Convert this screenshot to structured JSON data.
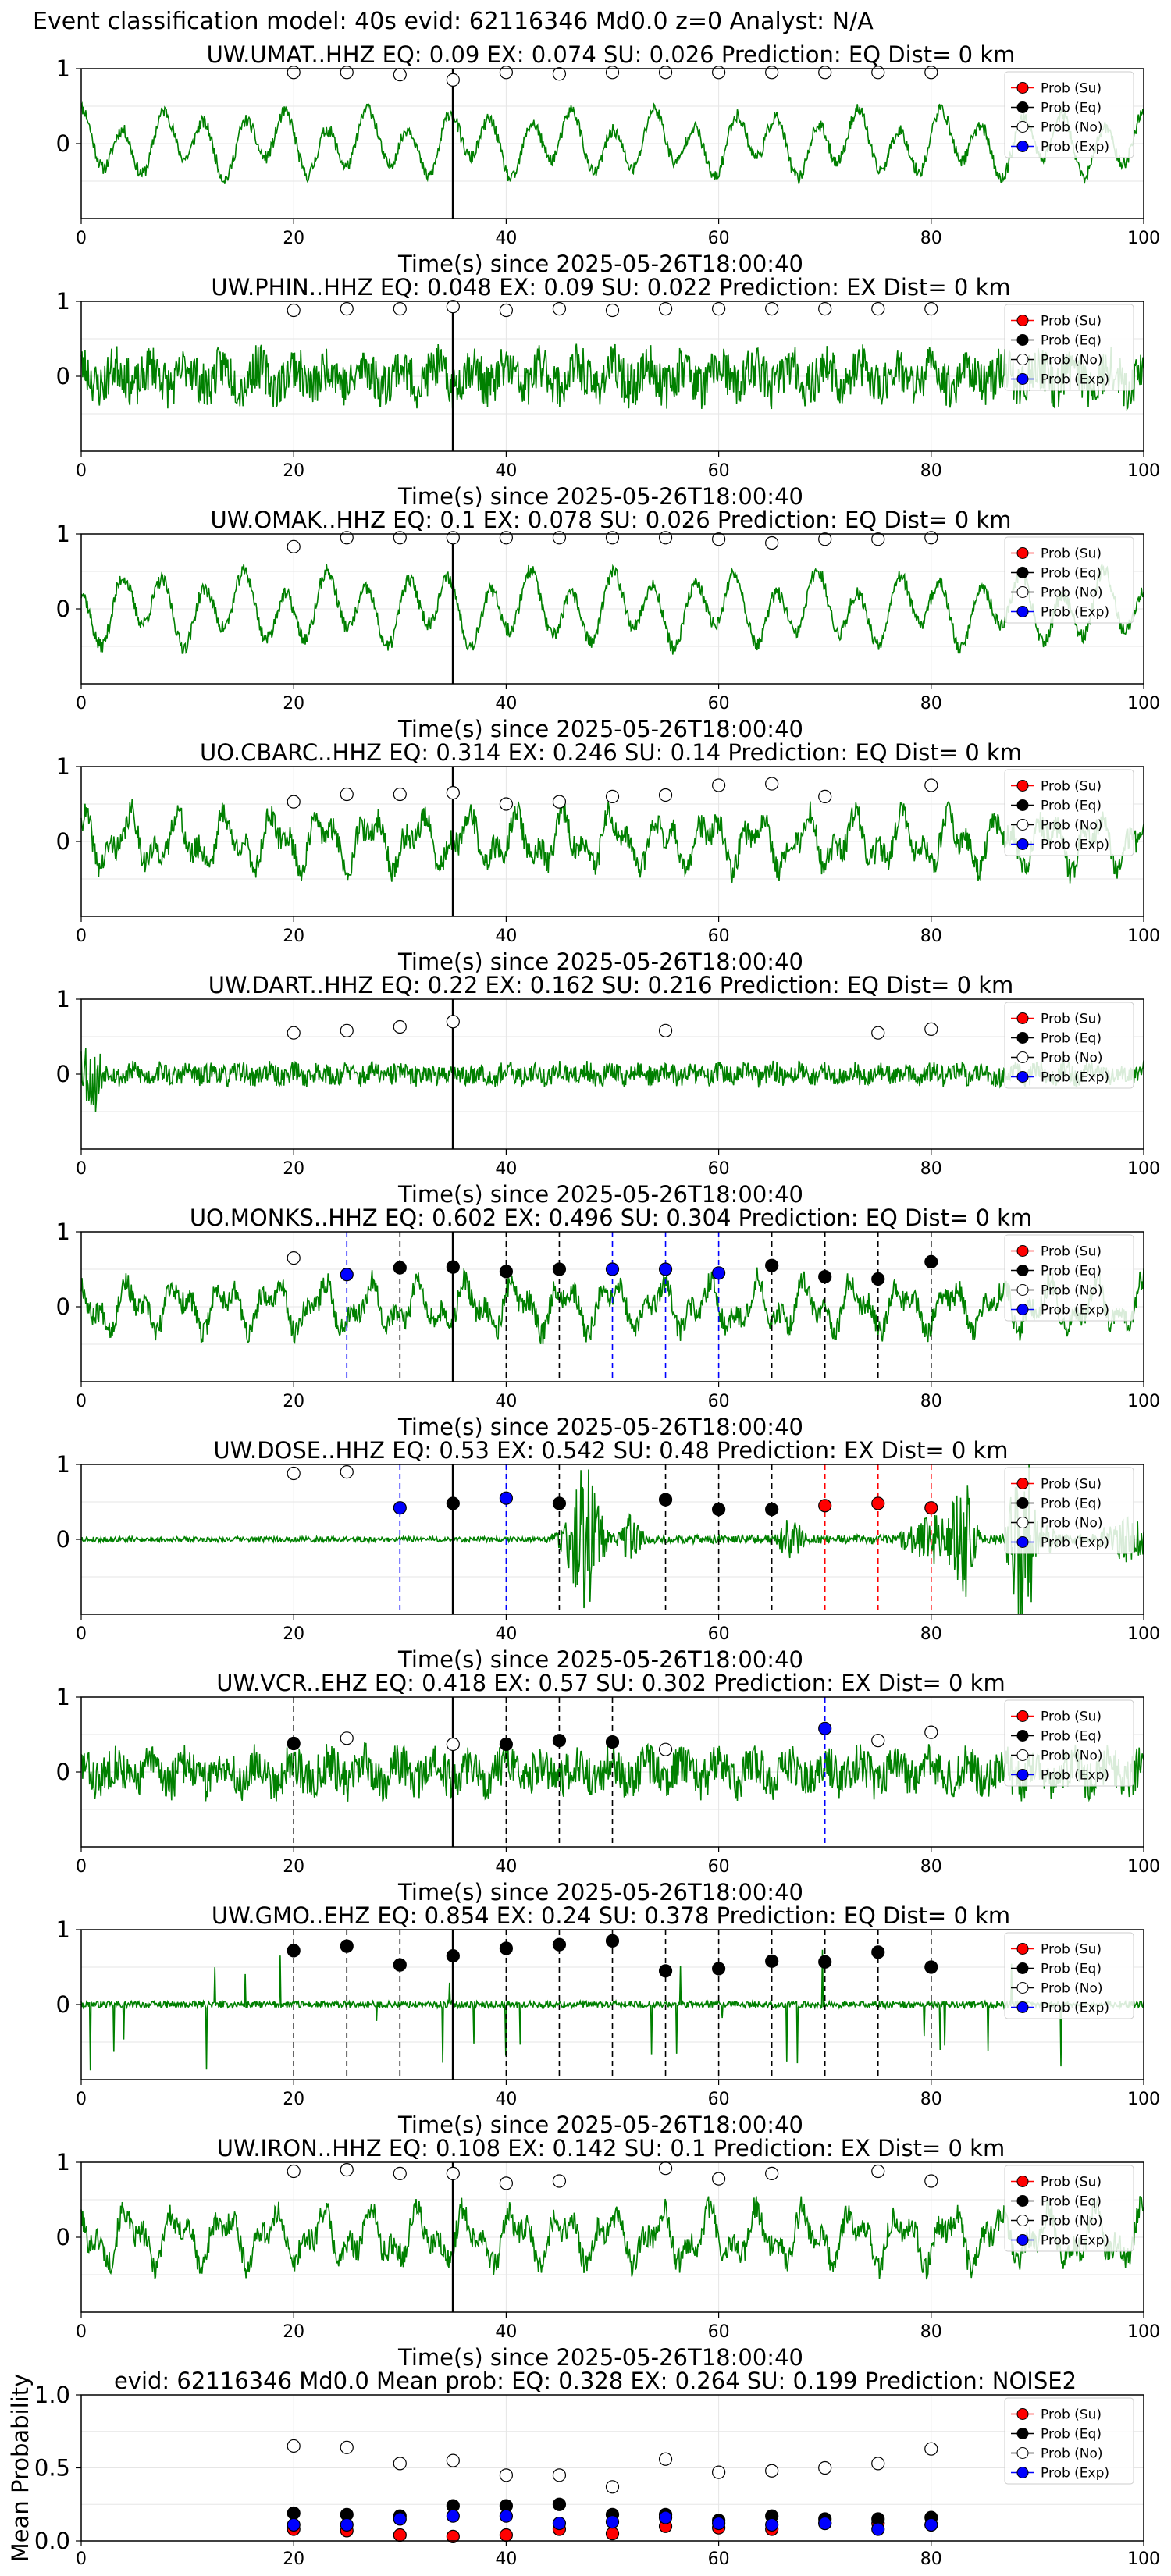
{
  "figure": {
    "suptitle": "Event classification model: 40s evid: 62116346 Md0.0 z=0 Analyst: N/A"
  },
  "legend_labels": [
    "Prob (Su)",
    "Prob (Eq)",
    "Prob (No)",
    "Prob (Exp)"
  ],
  "colors": {
    "waveform": "#008000",
    "su": "#ff0000",
    "eq": "#000000",
    "no": "#ffffff",
    "exp": "#0000ff",
    "marker_edge": "#000000",
    "vline_pick": "#000000",
    "grid": "#e6e6e6"
  },
  "chart_data": [
    {
      "type": "line",
      "station": "UW.UMAT..HHZ",
      "title": "UW.UMAT..HHZ   EQ: 0.09  EX: 0.074  SU: 0.026   Prediction: EQ    Dist= 0 km",
      "xlabel": "Time(s) since 2025-05-26T18:00:40",
      "xlim": [
        0,
        100
      ],
      "ylim": [
        -1,
        1
      ],
      "xticks": [
        0,
        20,
        40,
        60,
        80,
        100
      ],
      "yticks": [
        0,
        1
      ],
      "pick_time": 35,
      "waveform": {
        "style": "lowfreq",
        "seed": 11,
        "amp": 0.5
      },
      "markers": [
        {
          "t": 20,
          "cls": "no",
          "p": 0.95
        },
        {
          "t": 25,
          "cls": "no",
          "p": 0.95
        },
        {
          "t": 30,
          "cls": "no",
          "p": 0.92
        },
        {
          "t": 35,
          "cls": "no",
          "p": 0.85
        },
        {
          "t": 40,
          "cls": "no",
          "p": 0.95
        },
        {
          "t": 45,
          "cls": "no",
          "p": 0.93
        },
        {
          "t": 50,
          "cls": "no",
          "p": 0.95
        },
        {
          "t": 55,
          "cls": "no",
          "p": 0.95
        },
        {
          "t": 60,
          "cls": "no",
          "p": 0.95
        },
        {
          "t": 65,
          "cls": "no",
          "p": 0.95
        },
        {
          "t": 70,
          "cls": "no",
          "p": 0.95
        },
        {
          "t": 75,
          "cls": "no",
          "p": 0.95
        },
        {
          "t": 80,
          "cls": "no",
          "p": 0.95
        }
      ]
    },
    {
      "type": "line",
      "station": "UW.PHIN..HHZ",
      "title": "UW.PHIN..HHZ   EQ: 0.048  EX: 0.09  SU: 0.022   Prediction: EX    Dist= 0 km",
      "xlabel": "Time(s) since 2025-05-26T18:00:40",
      "xlim": [
        0,
        100
      ],
      "ylim": [
        -1,
        1
      ],
      "xticks": [
        0,
        20,
        40,
        60,
        80,
        100
      ],
      "yticks": [
        0,
        1
      ],
      "pick_time": 35,
      "waveform": {
        "style": "noisy",
        "seed": 23,
        "amp": 0.55
      },
      "markers": [
        {
          "t": 20,
          "cls": "no",
          "p": 0.88
        },
        {
          "t": 25,
          "cls": "no",
          "p": 0.9
        },
        {
          "t": 30,
          "cls": "no",
          "p": 0.9
        },
        {
          "t": 35,
          "cls": "no",
          "p": 0.93
        },
        {
          "t": 40,
          "cls": "no",
          "p": 0.88
        },
        {
          "t": 45,
          "cls": "no",
          "p": 0.9
        },
        {
          "t": 50,
          "cls": "no",
          "p": 0.88
        },
        {
          "t": 55,
          "cls": "no",
          "p": 0.9
        },
        {
          "t": 60,
          "cls": "no",
          "p": 0.9
        },
        {
          "t": 65,
          "cls": "no",
          "p": 0.9
        },
        {
          "t": 70,
          "cls": "no",
          "p": 0.9
        },
        {
          "t": 75,
          "cls": "no",
          "p": 0.9
        },
        {
          "t": 80,
          "cls": "no",
          "p": 0.9
        }
      ]
    },
    {
      "type": "line",
      "station": "UW.OMAK..HHZ",
      "title": "UW.OMAK..HHZ   EQ: 0.1  EX: 0.078  SU: 0.026   Prediction: EQ    Dist= 0 km",
      "xlabel": "Time(s) since 2025-05-26T18:00:40",
      "xlim": [
        0,
        100
      ],
      "ylim": [
        -1,
        1
      ],
      "xticks": [
        0,
        20,
        40,
        60,
        80,
        100
      ],
      "yticks": [
        0,
        1
      ],
      "pick_time": 35,
      "waveform": {
        "style": "lowfreq",
        "seed": 37,
        "amp": 0.55
      },
      "markers": [
        {
          "t": 20,
          "cls": "no",
          "p": 0.83
        },
        {
          "t": 25,
          "cls": "no",
          "p": 0.95
        },
        {
          "t": 30,
          "cls": "no",
          "p": 0.95
        },
        {
          "t": 35,
          "cls": "no",
          "p": 0.95
        },
        {
          "t": 40,
          "cls": "no",
          "p": 0.95
        },
        {
          "t": 45,
          "cls": "no",
          "p": 0.95
        },
        {
          "t": 50,
          "cls": "no",
          "p": 0.95
        },
        {
          "t": 55,
          "cls": "no",
          "p": 0.95
        },
        {
          "t": 60,
          "cls": "no",
          "p": 0.93
        },
        {
          "t": 65,
          "cls": "no",
          "p": 0.88
        },
        {
          "t": 70,
          "cls": "no",
          "p": 0.93
        },
        {
          "t": 75,
          "cls": "no",
          "p": 0.93
        },
        {
          "t": 80,
          "cls": "no",
          "p": 0.95
        }
      ]
    },
    {
      "type": "line",
      "station": "UO.CBARC..HHZ",
      "title": "UO.CBARC..HHZ   EQ: 0.314  EX: 0.246  SU: 0.14   Prediction: EQ    Dist= 0 km",
      "xlabel": "Time(s) since 2025-05-26T18:00:40",
      "xlim": [
        0,
        100
      ],
      "ylim": [
        -1,
        1
      ],
      "xticks": [
        0,
        20,
        40,
        60,
        80,
        100
      ],
      "yticks": [
        0,
        1
      ],
      "pick_time": 35,
      "waveform": {
        "style": "mid",
        "seed": 41,
        "amp": 0.55
      },
      "markers": [
        {
          "t": 20,
          "cls": "no",
          "p": 0.53
        },
        {
          "t": 25,
          "cls": "no",
          "p": 0.63
        },
        {
          "t": 30,
          "cls": "no",
          "p": 0.63
        },
        {
          "t": 35,
          "cls": "no",
          "p": 0.65
        },
        {
          "t": 40,
          "cls": "no",
          "p": 0.5
        },
        {
          "t": 45,
          "cls": "no",
          "p": 0.53
        },
        {
          "t": 50,
          "cls": "no",
          "p": 0.6
        },
        {
          "t": 55,
          "cls": "no",
          "p": 0.62
        },
        {
          "t": 60,
          "cls": "no",
          "p": 0.75
        },
        {
          "t": 65,
          "cls": "no",
          "p": 0.77
        },
        {
          "t": 70,
          "cls": "no",
          "p": 0.6
        },
        {
          "t": 80,
          "cls": "no",
          "p": 0.75
        }
      ]
    },
    {
      "type": "line",
      "station": "UW.DART..HHZ",
      "title": "UW.DART..HHZ   EQ: 0.22  EX: 0.162  SU: 0.216   Prediction: EQ    Dist= 0 km",
      "xlabel": "Time(s) since 2025-05-26T18:00:40",
      "xlim": [
        0,
        100
      ],
      "ylim": [
        -1,
        1
      ],
      "xticks": [
        0,
        20,
        40,
        60,
        80,
        100
      ],
      "yticks": [
        0,
        1
      ],
      "pick_time": 35,
      "waveform": {
        "style": "small",
        "seed": 53,
        "amp": 0.28
      },
      "markers": [
        {
          "t": 20,
          "cls": "no",
          "p": 0.55
        },
        {
          "t": 25,
          "cls": "no",
          "p": 0.58
        },
        {
          "t": 30,
          "cls": "no",
          "p": 0.63
        },
        {
          "t": 35,
          "cls": "no",
          "p": 0.7
        },
        {
          "t": 55,
          "cls": "no",
          "p": 0.58
        },
        {
          "t": 75,
          "cls": "no",
          "p": 0.55
        },
        {
          "t": 80,
          "cls": "no",
          "p": 0.6
        }
      ]
    },
    {
      "type": "line",
      "station": "UO.MONKS..HHZ",
      "title": "UO.MONKS..HHZ   EQ: 0.602  EX: 0.496  SU: 0.304   Prediction: EQ    Dist= 0 km",
      "xlabel": "Time(s) since 2025-05-26T18:00:40",
      "xlim": [
        0,
        100
      ],
      "ylim": [
        -1,
        1
      ],
      "xticks": [
        0,
        20,
        40,
        60,
        80,
        100
      ],
      "yticks": [
        0,
        1
      ],
      "pick_time": 35,
      "waveform": {
        "style": "mid",
        "seed": 67,
        "amp": 0.5
      },
      "markers": [
        {
          "t": 20,
          "cls": "no",
          "p": 0.65
        },
        {
          "t": 25,
          "cls": "exp",
          "p": 0.43
        },
        {
          "t": 30,
          "cls": "eq",
          "p": 0.52
        },
        {
          "t": 35,
          "cls": "eq",
          "p": 0.53
        },
        {
          "t": 40,
          "cls": "eq",
          "p": 0.47
        },
        {
          "t": 45,
          "cls": "eq",
          "p": 0.5
        },
        {
          "t": 50,
          "cls": "exp",
          "p": 0.5
        },
        {
          "t": 55,
          "cls": "exp",
          "p": 0.5
        },
        {
          "t": 60,
          "cls": "exp",
          "p": 0.45
        },
        {
          "t": 65,
          "cls": "eq",
          "p": 0.55
        },
        {
          "t": 70,
          "cls": "eq",
          "p": 0.4
        },
        {
          "t": 75,
          "cls": "eq",
          "p": 0.37
        },
        {
          "t": 80,
          "cls": "eq",
          "p": 0.6
        }
      ]
    },
    {
      "type": "line",
      "station": "UW.DOSE..HHZ",
      "title": "UW.DOSE..HHZ   EQ: 0.53  EX: 0.542  SU: 0.48   Prediction: EX    Dist= 0 km",
      "xlabel": "Time(s) since 2025-05-26T18:00:40",
      "xlim": [
        0,
        100
      ],
      "ylim": [
        -1,
        1
      ],
      "xticks": [
        0,
        20,
        40,
        60,
        80,
        100
      ],
      "yticks": [
        0,
        1
      ],
      "pick_time": 35,
      "waveform": {
        "style": "bursty",
        "seed": 79,
        "amp": 0.12
      },
      "markers": [
        {
          "t": 20,
          "cls": "no",
          "p": 0.88
        },
        {
          "t": 25,
          "cls": "no",
          "p": 0.9
        },
        {
          "t": 30,
          "cls": "exp",
          "p": 0.42
        },
        {
          "t": 35,
          "cls": "eq",
          "p": 0.48
        },
        {
          "t": 40,
          "cls": "exp",
          "p": 0.55
        },
        {
          "t": 45,
          "cls": "eq",
          "p": 0.48
        },
        {
          "t": 55,
          "cls": "eq",
          "p": 0.53
        },
        {
          "t": 60,
          "cls": "eq",
          "p": 0.4
        },
        {
          "t": 65,
          "cls": "eq",
          "p": 0.4
        },
        {
          "t": 70,
          "cls": "su",
          "p": 0.45
        },
        {
          "t": 75,
          "cls": "su",
          "p": 0.48
        },
        {
          "t": 80,
          "cls": "su",
          "p": 0.42
        }
      ]
    },
    {
      "type": "line",
      "station": "UW.VCR..EHZ",
      "title": "UW.VCR..EHZ   EQ: 0.418  EX: 0.57  SU: 0.302   Prediction: EX    Dist= 0 km",
      "xlabel": "Time(s) since 2025-05-26T18:00:40",
      "xlim": [
        0,
        100
      ],
      "ylim": [
        -1,
        1
      ],
      "xticks": [
        0,
        20,
        40,
        60,
        80,
        100
      ],
      "yticks": [
        0,
        1
      ],
      "pick_time": 35,
      "waveform": {
        "style": "noisy",
        "seed": 83,
        "amp": 0.5
      },
      "markers": [
        {
          "t": 20,
          "cls": "eq",
          "p": 0.38
        },
        {
          "t": 25,
          "cls": "no",
          "p": 0.45
        },
        {
          "t": 35,
          "cls": "no",
          "p": 0.37
        },
        {
          "t": 40,
          "cls": "eq",
          "p": 0.37
        },
        {
          "t": 45,
          "cls": "eq",
          "p": 0.42
        },
        {
          "t": 50,
          "cls": "eq",
          "p": 0.4
        },
        {
          "t": 55,
          "cls": "no",
          "p": 0.3
        },
        {
          "t": 70,
          "cls": "exp",
          "p": 0.58
        },
        {
          "t": 75,
          "cls": "no",
          "p": 0.42
        },
        {
          "t": 80,
          "cls": "no",
          "p": 0.53
        }
      ]
    },
    {
      "type": "line",
      "station": "UW.GMO..EHZ",
      "title": "UW.GMO..EHZ   EQ: 0.854  EX: 0.24  SU: 0.378   Prediction: EQ    Dist= 0 km",
      "xlabel": "Time(s) since 2025-05-26T18:00:40",
      "xlim": [
        0,
        100
      ],
      "ylim": [
        -1,
        1
      ],
      "xticks": [
        0,
        20,
        40,
        60,
        80,
        100
      ],
      "yticks": [
        0,
        1
      ],
      "pick_time": 35,
      "waveform": {
        "style": "spiky",
        "seed": 97,
        "amp": 0.1
      },
      "markers": [
        {
          "t": 20,
          "cls": "eq",
          "p": 0.72
        },
        {
          "t": 25,
          "cls": "eq",
          "p": 0.78
        },
        {
          "t": 30,
          "cls": "eq",
          "p": 0.53
        },
        {
          "t": 35,
          "cls": "eq",
          "p": 0.65
        },
        {
          "t": 40,
          "cls": "eq",
          "p": 0.75
        },
        {
          "t": 45,
          "cls": "eq",
          "p": 0.8
        },
        {
          "t": 50,
          "cls": "eq",
          "p": 0.85
        },
        {
          "t": 55,
          "cls": "eq",
          "p": 0.45
        },
        {
          "t": 60,
          "cls": "eq",
          "p": 0.48
        },
        {
          "t": 65,
          "cls": "eq",
          "p": 0.58
        },
        {
          "t": 70,
          "cls": "eq",
          "p": 0.57
        },
        {
          "t": 75,
          "cls": "eq",
          "p": 0.7
        },
        {
          "t": 80,
          "cls": "eq",
          "p": 0.5
        }
      ]
    },
    {
      "type": "line",
      "station": "UW.IRON..HHZ",
      "title": "UW.IRON..HHZ   EQ: 0.108  EX: 0.142  SU: 0.1   Prediction: EX    Dist= 0 km",
      "xlabel": "Time(s) since 2025-05-26T18:00:40",
      "xlim": [
        0,
        100
      ],
      "ylim": [
        -1,
        1
      ],
      "xticks": [
        0,
        20,
        40,
        60,
        80,
        100
      ],
      "yticks": [
        0,
        1
      ],
      "pick_time": 35,
      "waveform": {
        "style": "mid",
        "seed": 101,
        "amp": 0.55
      },
      "markers": [
        {
          "t": 20,
          "cls": "no",
          "p": 0.88
        },
        {
          "t": 25,
          "cls": "no",
          "p": 0.9
        },
        {
          "t": 30,
          "cls": "no",
          "p": 0.85
        },
        {
          "t": 35,
          "cls": "no",
          "p": 0.85
        },
        {
          "t": 40,
          "cls": "no",
          "p": 0.72
        },
        {
          "t": 45,
          "cls": "no",
          "p": 0.75
        },
        {
          "t": 55,
          "cls": "no",
          "p": 0.92
        },
        {
          "t": 60,
          "cls": "no",
          "p": 0.78
        },
        {
          "t": 65,
          "cls": "no",
          "p": 0.85
        },
        {
          "t": 75,
          "cls": "no",
          "p": 0.88
        },
        {
          "t": 80,
          "cls": "no",
          "p": 0.75
        }
      ]
    },
    {
      "type": "scatter",
      "title": "evid: 62116346  Md0.0   Mean prob:   EQ: 0.328  EX: 0.264  SU: 0.199   Prediction: NOISE2",
      "ylabel": "Mean Probability",
      "xlim": [
        0,
        100
      ],
      "ylim": [
        0,
        1
      ],
      "xticks": [
        0,
        20,
        40,
        60,
        80,
        100
      ],
      "yticks": [
        0.0,
        0.5,
        1.0
      ],
      "ytick_labels": [
        "0.0",
        "0.5",
        "1.0"
      ],
      "x": [
        20,
        25,
        30,
        35,
        40,
        45,
        50,
        55,
        60,
        65,
        70,
        75,
        80
      ],
      "series": [
        {
          "name": "Prob (Su)",
          "cls": "su",
          "values": [
            0.08,
            0.07,
            0.04,
            0.03,
            0.04,
            0.08,
            0.05,
            0.1,
            0.09,
            0.08,
            0.12,
            0.12,
            0.11
          ]
        },
        {
          "name": "Prob (Eq)",
          "cls": "eq",
          "values": [
            0.19,
            0.18,
            0.17,
            0.24,
            0.24,
            0.25,
            0.18,
            0.18,
            0.14,
            0.17,
            0.15,
            0.15,
            0.16
          ]
        },
        {
          "name": "Prob (No)",
          "cls": "no",
          "values": [
            0.65,
            0.64,
            0.53,
            0.55,
            0.45,
            0.45,
            0.37,
            0.56,
            0.47,
            0.48,
            0.5,
            0.53,
            0.63
          ]
        },
        {
          "name": "Prob (Exp)",
          "cls": "exp",
          "values": [
            0.11,
            0.11,
            0.15,
            0.17,
            0.17,
            0.12,
            0.13,
            0.16,
            0.12,
            0.11,
            0.12,
            0.08,
            0.11
          ]
        }
      ]
    }
  ]
}
